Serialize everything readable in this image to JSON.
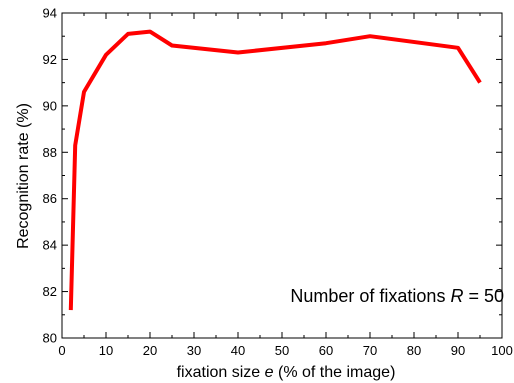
{
  "chart_data": {
    "type": "line",
    "title": "",
    "xlabel_prefix": "fixation size ",
    "xlabel_var": "e",
    "xlabel_suffix": " (% of the image)",
    "ylabel": "Recognition rate (%)",
    "xlim": [
      0,
      100
    ],
    "ylim": [
      80,
      94
    ],
    "x_ticks": [
      0,
      10,
      20,
      30,
      40,
      50,
      60,
      70,
      80,
      90,
      100
    ],
    "y_ticks": [
      80,
      82,
      84,
      86,
      88,
      90,
      92,
      94
    ],
    "x_tick_labels": [
      "0",
      "10",
      "20",
      "30",
      "40",
      "50",
      "60",
      "70",
      "80",
      "90",
      "100"
    ],
    "y_tick_labels": [
      "80",
      "82",
      "84",
      "86",
      "88",
      "90",
      "92",
      "94"
    ],
    "grid": false,
    "series_color": "#ff0000",
    "series": [
      {
        "x": [
          2,
          3,
          5,
          10,
          15,
          20,
          25,
          40,
          60,
          70,
          90,
          95
        ],
        "values": [
          81.2,
          88.3,
          90.6,
          92.2,
          93.1,
          93.2,
          92.6,
          92.3,
          92.7,
          93.0,
          92.5,
          91.0
        ]
      }
    ],
    "annotation": {
      "prefix": "Number of fixations ",
      "var": "R",
      "suffix": " = 50"
    }
  }
}
